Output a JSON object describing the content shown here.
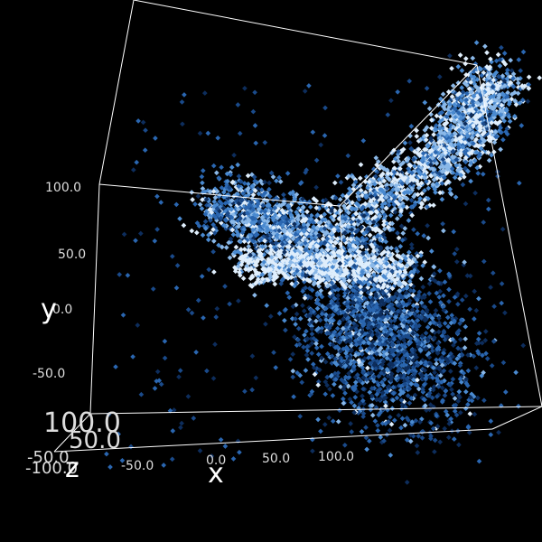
{
  "chart_data": {
    "type": "scatter",
    "dimension": "3d",
    "background": "#000000",
    "axis_color": "#ffffff",
    "point_colors": [
      "#0d2d5c",
      "#1a4a8a",
      "#2a66b0",
      "#4a8ad0",
      "#8ab8e8",
      "#dfeefc"
    ],
    "xlabel": "x",
    "ylabel": "y",
    "zlabel": "z",
    "x_ticks": [
      "-50.0",
      "0.0",
      "50.0",
      "100.0"
    ],
    "y_ticks": [
      "100.0",
      "50.0",
      "0.0",
      "-50.0"
    ],
    "z_ticks": [
      "100.0",
      "50.0",
      "-50.0",
      "-100.0"
    ],
    "xlim": [
      -100,
      120
    ],
    "ylim": [
      -100,
      130
    ],
    "zlim": [
      -120,
      120
    ],
    "grid": false,
    "legend": "none",
    "clusters": [
      {
        "x": [
          -50,
          10
        ],
        "y": [
          60,
          30
        ],
        "z": [
          0,
          0
        ],
        "spread": 9,
        "bright": 0.6
      },
      {
        "x": [
          10,
          80
        ],
        "y": [
          30,
          80
        ],
        "z": [
          0,
          0
        ],
        "spread": 10,
        "bright": 0.75
      },
      {
        "x": [
          80,
          100
        ],
        "y": [
          80,
          120
        ],
        "z": [
          0,
          0
        ],
        "spread": 10,
        "bright": 0.7
      },
      {
        "x": [
          20,
          60
        ],
        "y": [
          10,
          -40
        ],
        "z": [
          0,
          0
        ],
        "spread": 18,
        "bright": 0.4
      },
      {
        "x": [
          40,
          80
        ],
        "y": [
          -10,
          -70
        ],
        "z": [
          0,
          0
        ],
        "spread": 20,
        "bright": 0.3
      },
      {
        "x": [
          -30,
          60
        ],
        "y": [
          20,
          10
        ],
        "z": [
          0,
          0
        ],
        "spread": 6,
        "bright": 0.9
      }
    ]
  }
}
